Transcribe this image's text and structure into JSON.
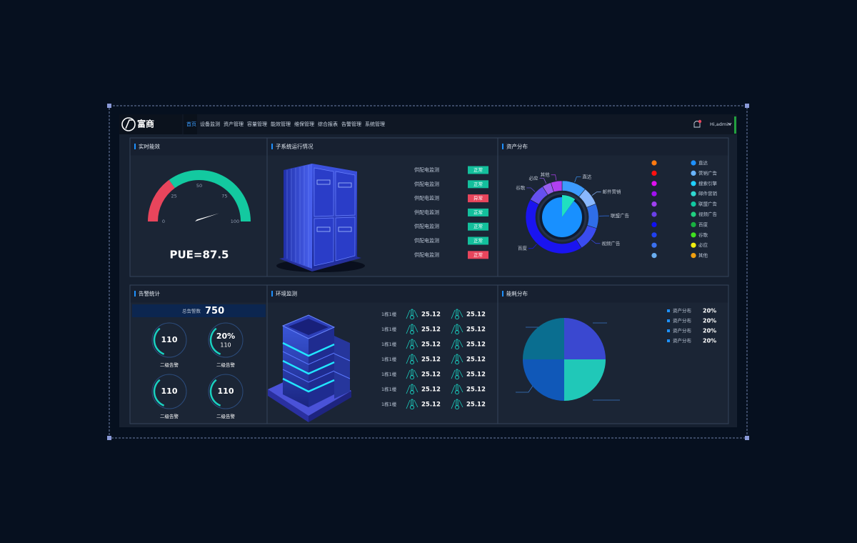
{
  "nav": {
    "logo": "富商",
    "items": [
      "首页",
      "设备监测",
      "资产管理",
      "容量管理",
      "能效管理",
      "维保管理",
      "综合报表",
      "告警管理",
      "系统管理"
    ],
    "active": 0,
    "user": "Hi,admin"
  },
  "panels": {
    "efficiency": {
      "title": "实时能效",
      "gauge": {
        "min": 0,
        "max": 100,
        "ticks": [
          0,
          25,
          50,
          75,
          100
        ],
        "value": 87.5,
        "value_label": "PUE=87.5",
        "bands": [
          {
            "to": 30,
            "color": "#e8455c"
          },
          {
            "to": 100,
            "color": "#13c9a0"
          }
        ]
      }
    },
    "subsystems": {
      "title": "子系统运行情况",
      "rows": [
        {
          "label": "供配电监测",
          "status": "正常",
          "color": "#13bf9c"
        },
        {
          "label": "供配电监测",
          "status": "正常",
          "color": "#13bf9c"
        },
        {
          "label": "供配电监测",
          "status": "异常",
          "color": "#e8455c"
        },
        {
          "label": "供配电监测",
          "status": "正常",
          "color": "#13bf9c"
        },
        {
          "label": "供配电监测",
          "status": "正常",
          "color": "#13bf9c"
        },
        {
          "label": "供配电监测",
          "status": "正常",
          "color": "#13bf9c"
        },
        {
          "label": "供配电监测",
          "status": "正常",
          "color": "#e8455c"
        }
      ]
    },
    "assets": {
      "title": "资产分布",
      "outer": [
        {
          "name": "直达",
          "value": 11,
          "color": "#3d9bff"
        },
        {
          "name": "邮件营销",
          "value": 8,
          "color": "#8ab8ff"
        },
        {
          "name": "联盟广告",
          "value": 11,
          "color": "#2f6ee8"
        },
        {
          "name": "视频广告",
          "value": 11,
          "color": "#3a4cf0"
        },
        {
          "name": "百度",
          "value": 42,
          "color": "#1a14f0"
        },
        {
          "name": "谷歌",
          "value": 8,
          "color": "#6650f0"
        },
        {
          "name": "必应",
          "value": 4,
          "color": "#9a5ef0"
        },
        {
          "name": "其他",
          "value": 5,
          "color": "#b040f0"
        }
      ],
      "inner": [
        {
          "value": 10,
          "color": "#20e0c0"
        },
        {
          "value": 90,
          "color": "#1890ff"
        }
      ],
      "legend_dots": [
        "#ff7a10",
        "#ff1010",
        "#e010f0",
        "#a010f0",
        "#a040f0",
        "#6a40e8",
        "#1010f0",
        "#2040f0",
        "#3a70f0",
        "#6aaef0"
      ],
      "legend": [
        {
          "label": "直达",
          "color": "#1e90ff"
        },
        {
          "label": "营销广告",
          "color": "#6ab4ff"
        },
        {
          "label": "搜索引擎",
          "color": "#20d0ff"
        },
        {
          "label": "邮件营销",
          "color": "#30d8d0"
        },
        {
          "label": "联盟广告",
          "color": "#10c8a0"
        },
        {
          "label": "视频广告",
          "color": "#20d080"
        },
        {
          "label": "百度",
          "color": "#18b040"
        },
        {
          "label": "谷歌",
          "color": "#40e020"
        },
        {
          "label": "必应",
          "color": "#f0f010"
        },
        {
          "label": "其他",
          "color": "#f0a010"
        }
      ]
    },
    "alarms": {
      "title": "告警统计",
      "total_label": "总告警数",
      "total": 750,
      "items": [
        {
          "value": 110,
          "label": "二级告警"
        },
        {
          "value": 20,
          "value_label": "20%",
          "sub": 110,
          "label": "二级告警"
        },
        {
          "value": 110,
          "label": "二级告警"
        },
        {
          "value": 110,
          "label": "二级告警"
        }
      ]
    },
    "environment": {
      "title": "环境监测",
      "rows": [
        {
          "location": "1栋1楼",
          "temperature": 25.12,
          "humidity": 25.12
        },
        {
          "location": "1栋1楼",
          "temperature": 25.12,
          "humidity": 25.12
        },
        {
          "location": "1栋1楼",
          "temperature": 25.12,
          "humidity": 25.12
        },
        {
          "location": "1栋1楼",
          "temperature": 25.12,
          "humidity": 25.12
        },
        {
          "location": "1栋1楼",
          "temperature": 25.12,
          "humidity": 25.12
        },
        {
          "location": "1栋1楼",
          "temperature": 25.12,
          "humidity": 25.12
        },
        {
          "location": "1栋1楼",
          "temperature": 25.12,
          "humidity": 25.12
        }
      ]
    },
    "energy": {
      "title": "能耗分布",
      "segments": [
        {
          "name": "资产分布",
          "value": 20,
          "value_label": "20%",
          "color": "#3a48d0"
        },
        {
          "name": "资产分布",
          "value": 20,
          "value_label": "20%",
          "color": "#20c8b8"
        },
        {
          "name": "资产分布",
          "value": 20,
          "value_label": "20%",
          "color": "#1058b8"
        },
        {
          "name": "资产分布",
          "value": 20,
          "value_label": "20%",
          "color": "#0a6e90"
        }
      ]
    }
  }
}
